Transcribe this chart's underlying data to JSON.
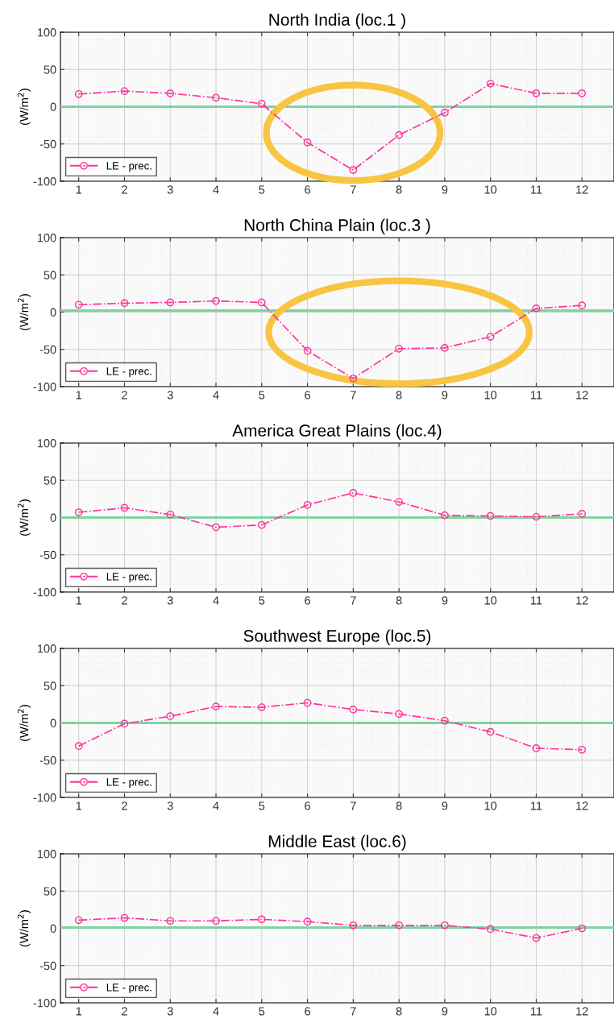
{
  "chart_data": [
    {
      "type": "line",
      "title": "North India (loc.1 )",
      "ylabel": "(W/m$^{2}$)",
      "x": [
        1,
        2,
        3,
        4,
        5,
        6,
        7,
        8,
        9,
        10,
        11,
        12
      ],
      "series": [
        {
          "name": "LE - prec.",
          "color": "#ff3399",
          "values": [
            17,
            21,
            18,
            12,
            4,
            -48,
            -85,
            -38,
            -8,
            31,
            18,
            18
          ]
        }
      ],
      "xlim": [
        0.6,
        12.7
      ],
      "ylim": [
        -100,
        100
      ],
      "xticks": [
        1,
        2,
        3,
        4,
        5,
        6,
        7,
        8,
        9,
        10,
        11,
        12
      ],
      "yticks": [
        -100,
        -50,
        0,
        50,
        100
      ],
      "ref_lines": [
        {
          "axis": "y",
          "value": 0,
          "color": "#7fd4a0"
        }
      ],
      "grid": true,
      "legend": "bottom left",
      "marker": "circle",
      "line_style": "dashdot"
    },
    {
      "type": "line",
      "title": "North China Plain (loc.3 )",
      "ylabel": "(W/m$^{2}$)",
      "x": [
        1,
        2,
        3,
        4,
        5,
        6,
        7,
        8,
        9,
        10,
        11,
        12
      ],
      "series": [
        {
          "name": "LE - prec.",
          "color": "#ff3399",
          "values": [
            10,
            12,
            13,
            15,
            13,
            -52,
            -89,
            -49,
            -48,
            -33,
            5,
            9
          ]
        }
      ],
      "xlim": [
        0.6,
        12.7
      ],
      "ylim": [
        -100,
        100
      ],
      "xticks": [
        1,
        2,
        3,
        4,
        5,
        6,
        7,
        8,
        9,
        10,
        11,
        12
      ],
      "yticks": [
        -100,
        -50,
        0,
        50,
        100
      ],
      "ref_lines": [
        {
          "axis": "y",
          "value": 2,
          "color": "#7fd4a0"
        }
      ],
      "grid": true,
      "legend": "bottom left",
      "marker": "circle",
      "line_style": "dashdot"
    },
    {
      "type": "line",
      "title": "America Great Plains (loc.4)",
      "ylabel": "(W/m$^{2}$)",
      "x": [
        1,
        2,
        3,
        4,
        5,
        6,
        7,
        8,
        9,
        10,
        11,
        12
      ],
      "series": [
        {
          "name": "LE - prec.",
          "color": "#ff3399",
          "values": [
            7,
            13,
            4,
            -13,
            -10,
            17,
            33,
            21,
            3,
            2,
            1,
            5
          ]
        }
      ],
      "xlim": [
        0.6,
        12.7
      ],
      "ylim": [
        -100,
        100
      ],
      "xticks": [
        1,
        2,
        3,
        4,
        5,
        6,
        7,
        8,
        9,
        10,
        11,
        12
      ],
      "yticks": [
        -100,
        -50,
        0,
        50,
        100
      ],
      "ref_lines": [
        {
          "axis": "y",
          "value": 0,
          "color": "#7fd4a0"
        }
      ],
      "grid": true,
      "legend": "bottom left",
      "marker": "circle",
      "line_style": "dashdot"
    },
    {
      "type": "line",
      "title": "Southwest Europe (loc.5)",
      "ylabel": "(W/m$^{2}$)",
      "x": [
        1,
        2,
        3,
        4,
        5,
        6,
        7,
        8,
        9,
        10,
        11,
        12
      ],
      "series": [
        {
          "name": "LE - prec.",
          "color": "#ff3399",
          "values": [
            -31,
            -1,
            9,
            22,
            21,
            27,
            18,
            12,
            3,
            -12,
            -34,
            -36
          ]
        }
      ],
      "xlim": [
        0.6,
        12.7
      ],
      "ylim": [
        -100,
        100
      ],
      "xticks": [
        1,
        2,
        3,
        4,
        5,
        6,
        7,
        8,
        9,
        10,
        11,
        12
      ],
      "yticks": [
        -100,
        -50,
        0,
        50,
        100
      ],
      "ref_lines": [
        {
          "axis": "y",
          "value": 0,
          "color": "#7fd4a0"
        }
      ],
      "grid": true,
      "legend": "bottom left",
      "marker": "circle",
      "line_style": "dashdot"
    },
    {
      "type": "line",
      "title": "Middle East (loc.6)",
      "ylabel": "(W/m$^{2}$)",
      "x": [
        1,
        2,
        3,
        4,
        5,
        6,
        7,
        8,
        9,
        10,
        11,
        12
      ],
      "series": [
        {
          "name": "LE - prec.",
          "color": "#ff3399",
          "values": [
            11,
            14,
            10,
            10,
            12,
            9,
            4,
            4,
            4,
            -1,
            -13,
            0
          ]
        }
      ],
      "xlim": [
        0.6,
        12.7
      ],
      "ylim": [
        -100,
        100
      ],
      "xticks": [
        1,
        2,
        3,
        4,
        5,
        6,
        7,
        8,
        9,
        10,
        11,
        12
      ],
      "yticks": [
        -100,
        -50,
        0,
        50,
        100
      ],
      "ref_lines": [
        {
          "axis": "y",
          "value": 1,
          "color": "#7fd4a0"
        }
      ],
      "grid": true,
      "legend": "bottom left",
      "marker": "circle",
      "line_style": "dashdot"
    }
  ]
}
